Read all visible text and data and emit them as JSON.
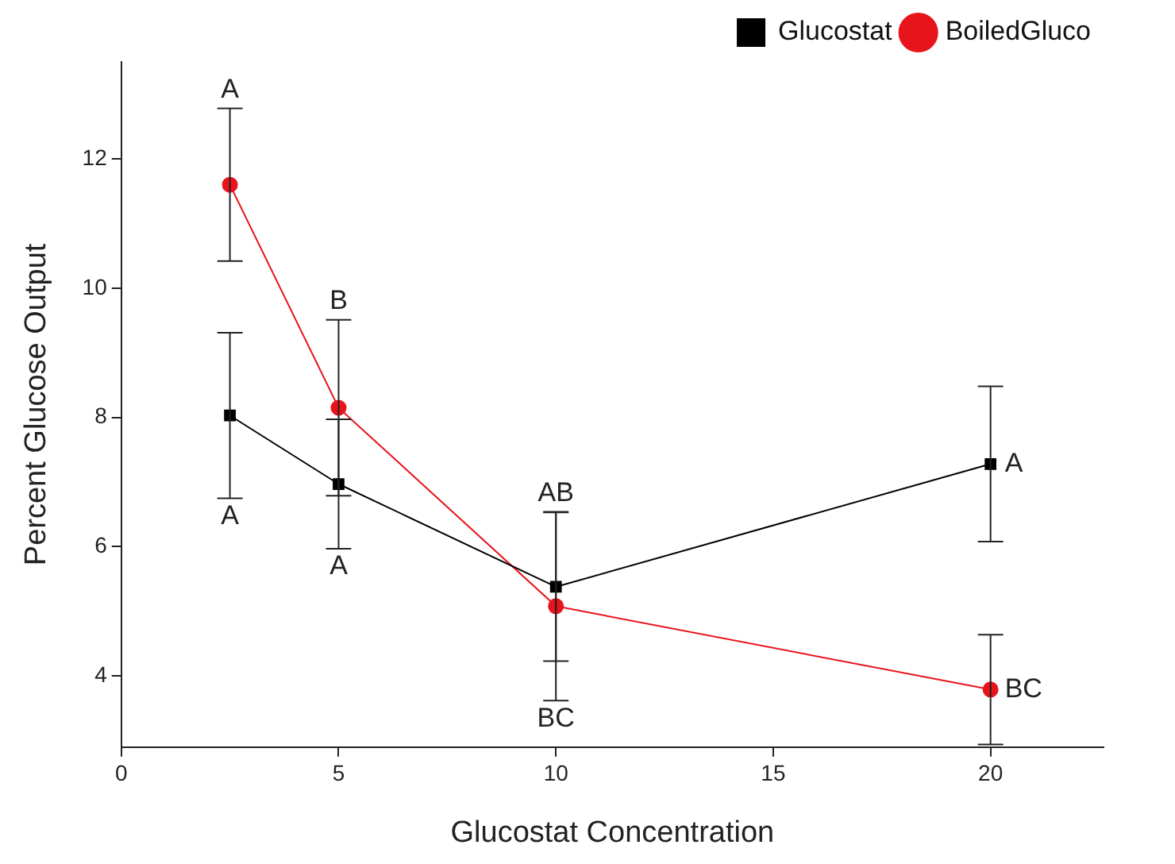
{
  "chart_data": {
    "type": "line",
    "xlabel": "Glucostat Concentration",
    "ylabel": "Percent Glucose Output",
    "x": [
      2.5,
      5,
      10,
      20
    ],
    "series": [
      {
        "name": "Glucostat",
        "color": "#000000",
        "marker": "square",
        "values": [
          8.03,
          6.97,
          5.38,
          7.28
        ],
        "errors": [
          1.28,
          1.0,
          1.15,
          1.2
        ]
      },
      {
        "name": "BoiledGluco",
        "color": "#e8141c",
        "marker": "circle",
        "values": [
          11.6,
          8.15,
          5.08,
          3.79
        ],
        "errors": [
          1.18,
          1.36,
          1.46,
          0.85
        ]
      }
    ],
    "xlim": [
      0,
      22.6
    ],
    "xticks": [
      0,
      5,
      10,
      15,
      20
    ],
    "ylim": [
      2.9,
      13.5
    ],
    "yticks": [
      4,
      6,
      8,
      10,
      12
    ],
    "grid": false,
    "legend": "top right",
    "annotations": [
      {
        "text": "A",
        "x": 2.5,
        "y": 12.78
      },
      {
        "text": "A",
        "x": 2.5,
        "y": 6.75
      },
      {
        "text": "B",
        "x": 5,
        "y": 9.51
      },
      {
        "text": "A",
        "x": 5,
        "y": 5.97
      },
      {
        "text": "AB",
        "x": 10,
        "y": 6.54
      },
      {
        "text": "BC",
        "x": 10,
        "y": 3.62
      },
      {
        "text": "A",
        "x": 20,
        "y": 7.28
      },
      {
        "text": "BC",
        "x": 20,
        "y": 3.79
      }
    ]
  }
}
